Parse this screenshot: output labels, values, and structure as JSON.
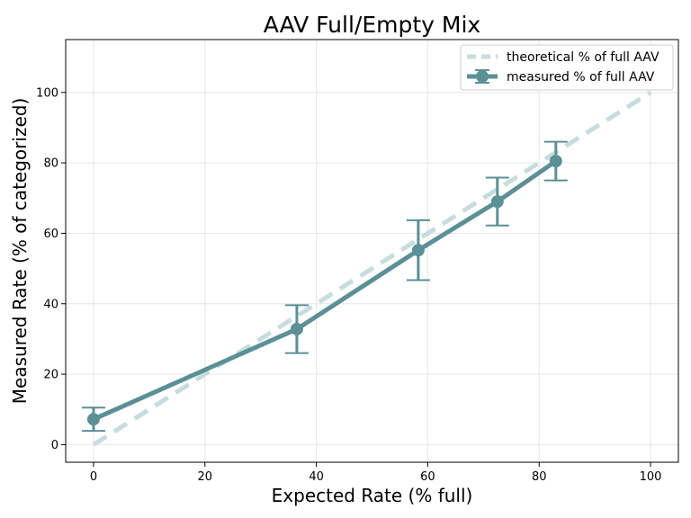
{
  "chart_data": {
    "type": "line",
    "title": "AAV Full/Empty Mix",
    "xlabel": "Expected Rate (% full)",
    "ylabel": "Measured Rate (% of categorized)",
    "xlim": [
      -5,
      105
    ],
    "ylim": [
      -5,
      115
    ],
    "xticks": [
      0,
      20,
      40,
      60,
      80,
      100
    ],
    "yticks": [
      0,
      20,
      40,
      60,
      80,
      100
    ],
    "grid": true,
    "legend_position": "top-right",
    "series": [
      {
        "name": "theoretical % of full AAV",
        "style": "dashed",
        "color": "#c8dcde",
        "points": [
          {
            "x": 0,
            "y": 0
          },
          {
            "x": 100,
            "y": 100
          }
        ]
      },
      {
        "name": "measured % of full AAV",
        "style": "solid-with-markers",
        "color": "#5b9096",
        "points": [
          {
            "x": 0,
            "y": 7.2,
            "err": 3.3
          },
          {
            "x": 36.5,
            "y": 32.8,
            "err": 6.8
          },
          {
            "x": 58.3,
            "y": 55.2,
            "err": 8.5
          },
          {
            "x": 72.5,
            "y": 69.0,
            "err": 6.8
          },
          {
            "x": 83.0,
            "y": 80.5,
            "err": 5.5
          }
        ]
      }
    ]
  }
}
